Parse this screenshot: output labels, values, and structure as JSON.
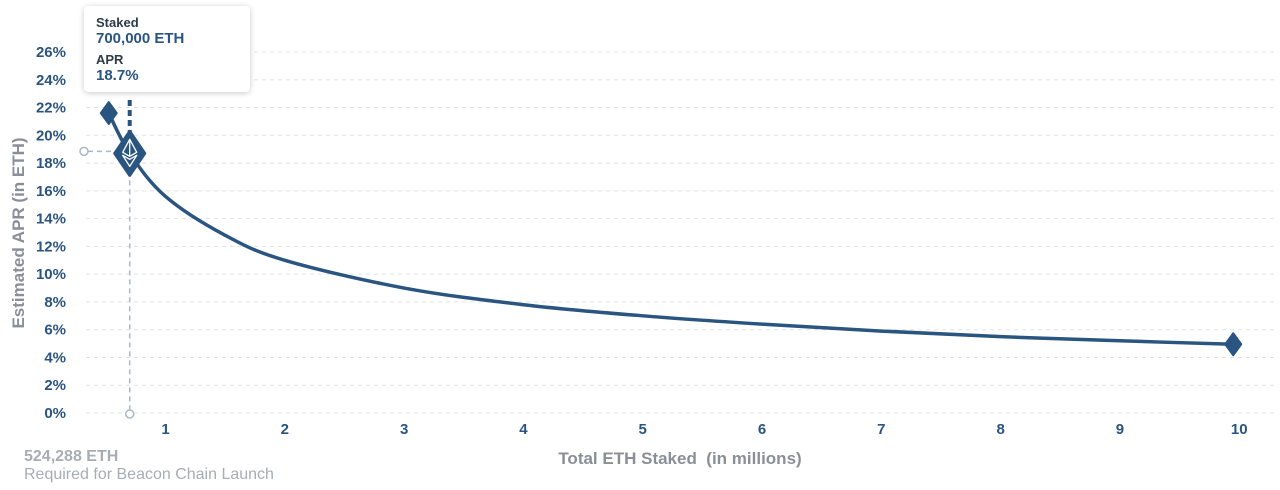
{
  "chart_data": {
    "type": "line",
    "title": "",
    "xlabel": "Total ETH Staked  (in millions)",
    "ylabel": "Estimated APR (in ETH)",
    "xlim": [
      0.3,
      10.3
    ],
    "ylim": [
      0,
      26
    ],
    "x_ticks": [
      1,
      2,
      3,
      4,
      5,
      6,
      7,
      8,
      9,
      10
    ],
    "y_ticks": [
      0,
      2,
      4,
      6,
      8,
      10,
      12,
      14,
      16,
      18,
      20,
      22,
      24,
      26
    ],
    "y_tick_format": "%",
    "grid": true,
    "series": [
      {
        "x": [
          0.524288,
          0.7,
          1,
          1.5,
          2,
          3,
          4,
          5,
          6,
          7,
          8,
          9,
          9.95
        ],
        "values": [
          21.6,
          18.7,
          15.6,
          12.8,
          11.0,
          9.0,
          7.8,
          7.0,
          6.4,
          5.9,
          5.5,
          5.2,
          4.95
        ],
        "color": "#2a5580"
      }
    ],
    "start_point": {
      "x": 0.524288,
      "value": 21.6
    },
    "end_point": {
      "x": 9.95,
      "value": 4.95
    },
    "highlight": {
      "x": 0.7,
      "value": 18.7
    }
  },
  "tooltip": {
    "staked_label": "Staked",
    "staked_value": "700,000 ETH",
    "apr_label": "APR",
    "apr_value": "18.7%"
  },
  "note": {
    "value": "524,288 ETH",
    "caption": "Required for Beacon Chain Launch"
  },
  "colors": {
    "line": "#2a5580",
    "guide": "#a9b8c9",
    "grid": "#dfe3e8"
  }
}
